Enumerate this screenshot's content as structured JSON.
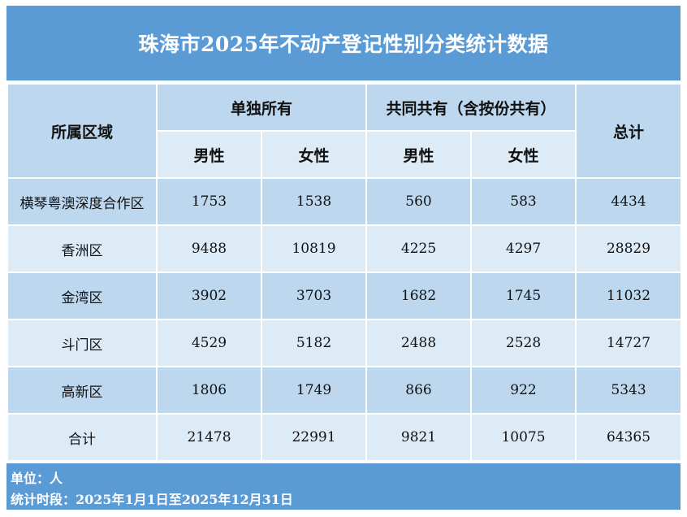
{
  "title": "珠海市2025年不动产登记性别分类统计数据",
  "headers": {
    "region": "所属区域",
    "sole": "单独所有",
    "joint": "共同共有（含按份共有）",
    "total": "总计",
    "male": "男性",
    "female": "女性"
  },
  "rows": [
    {
      "region": "横琴粤澳深度合作区",
      "sole_male": "1753",
      "sole_female": "1538",
      "joint_male": "560",
      "joint_female": "583",
      "total": "4434"
    },
    {
      "region": "香洲区",
      "sole_male": "9488",
      "sole_female": "10819",
      "joint_male": "4225",
      "joint_female": "4297",
      "total": "28829"
    },
    {
      "region": "金湾区",
      "sole_male": "3902",
      "sole_female": "3703",
      "joint_male": "1682",
      "joint_female": "1745",
      "total": "11032"
    },
    {
      "region": "斗门区",
      "sole_male": "4529",
      "sole_female": "5182",
      "joint_male": "2488",
      "joint_female": "2528",
      "total": "14727"
    },
    {
      "region": "高新区",
      "sole_male": "1806",
      "sole_female": "1749",
      "joint_male": "866",
      "joint_female": "922",
      "total": "5343"
    },
    {
      "region": "合计",
      "sole_male": "21478",
      "sole_female": "22991",
      "joint_male": "9821",
      "joint_female": "10075",
      "total": "64365"
    }
  ],
  "footer": {
    "unit": "单位：人",
    "period": "统计时段：2025年1月1日至2025年12月31日"
  },
  "colors": {
    "title_bg": "#5b9bd5",
    "header_bg": "#bdd7ee",
    "band_dark": "#bdd7ee",
    "band_light": "#ddebf7"
  }
}
